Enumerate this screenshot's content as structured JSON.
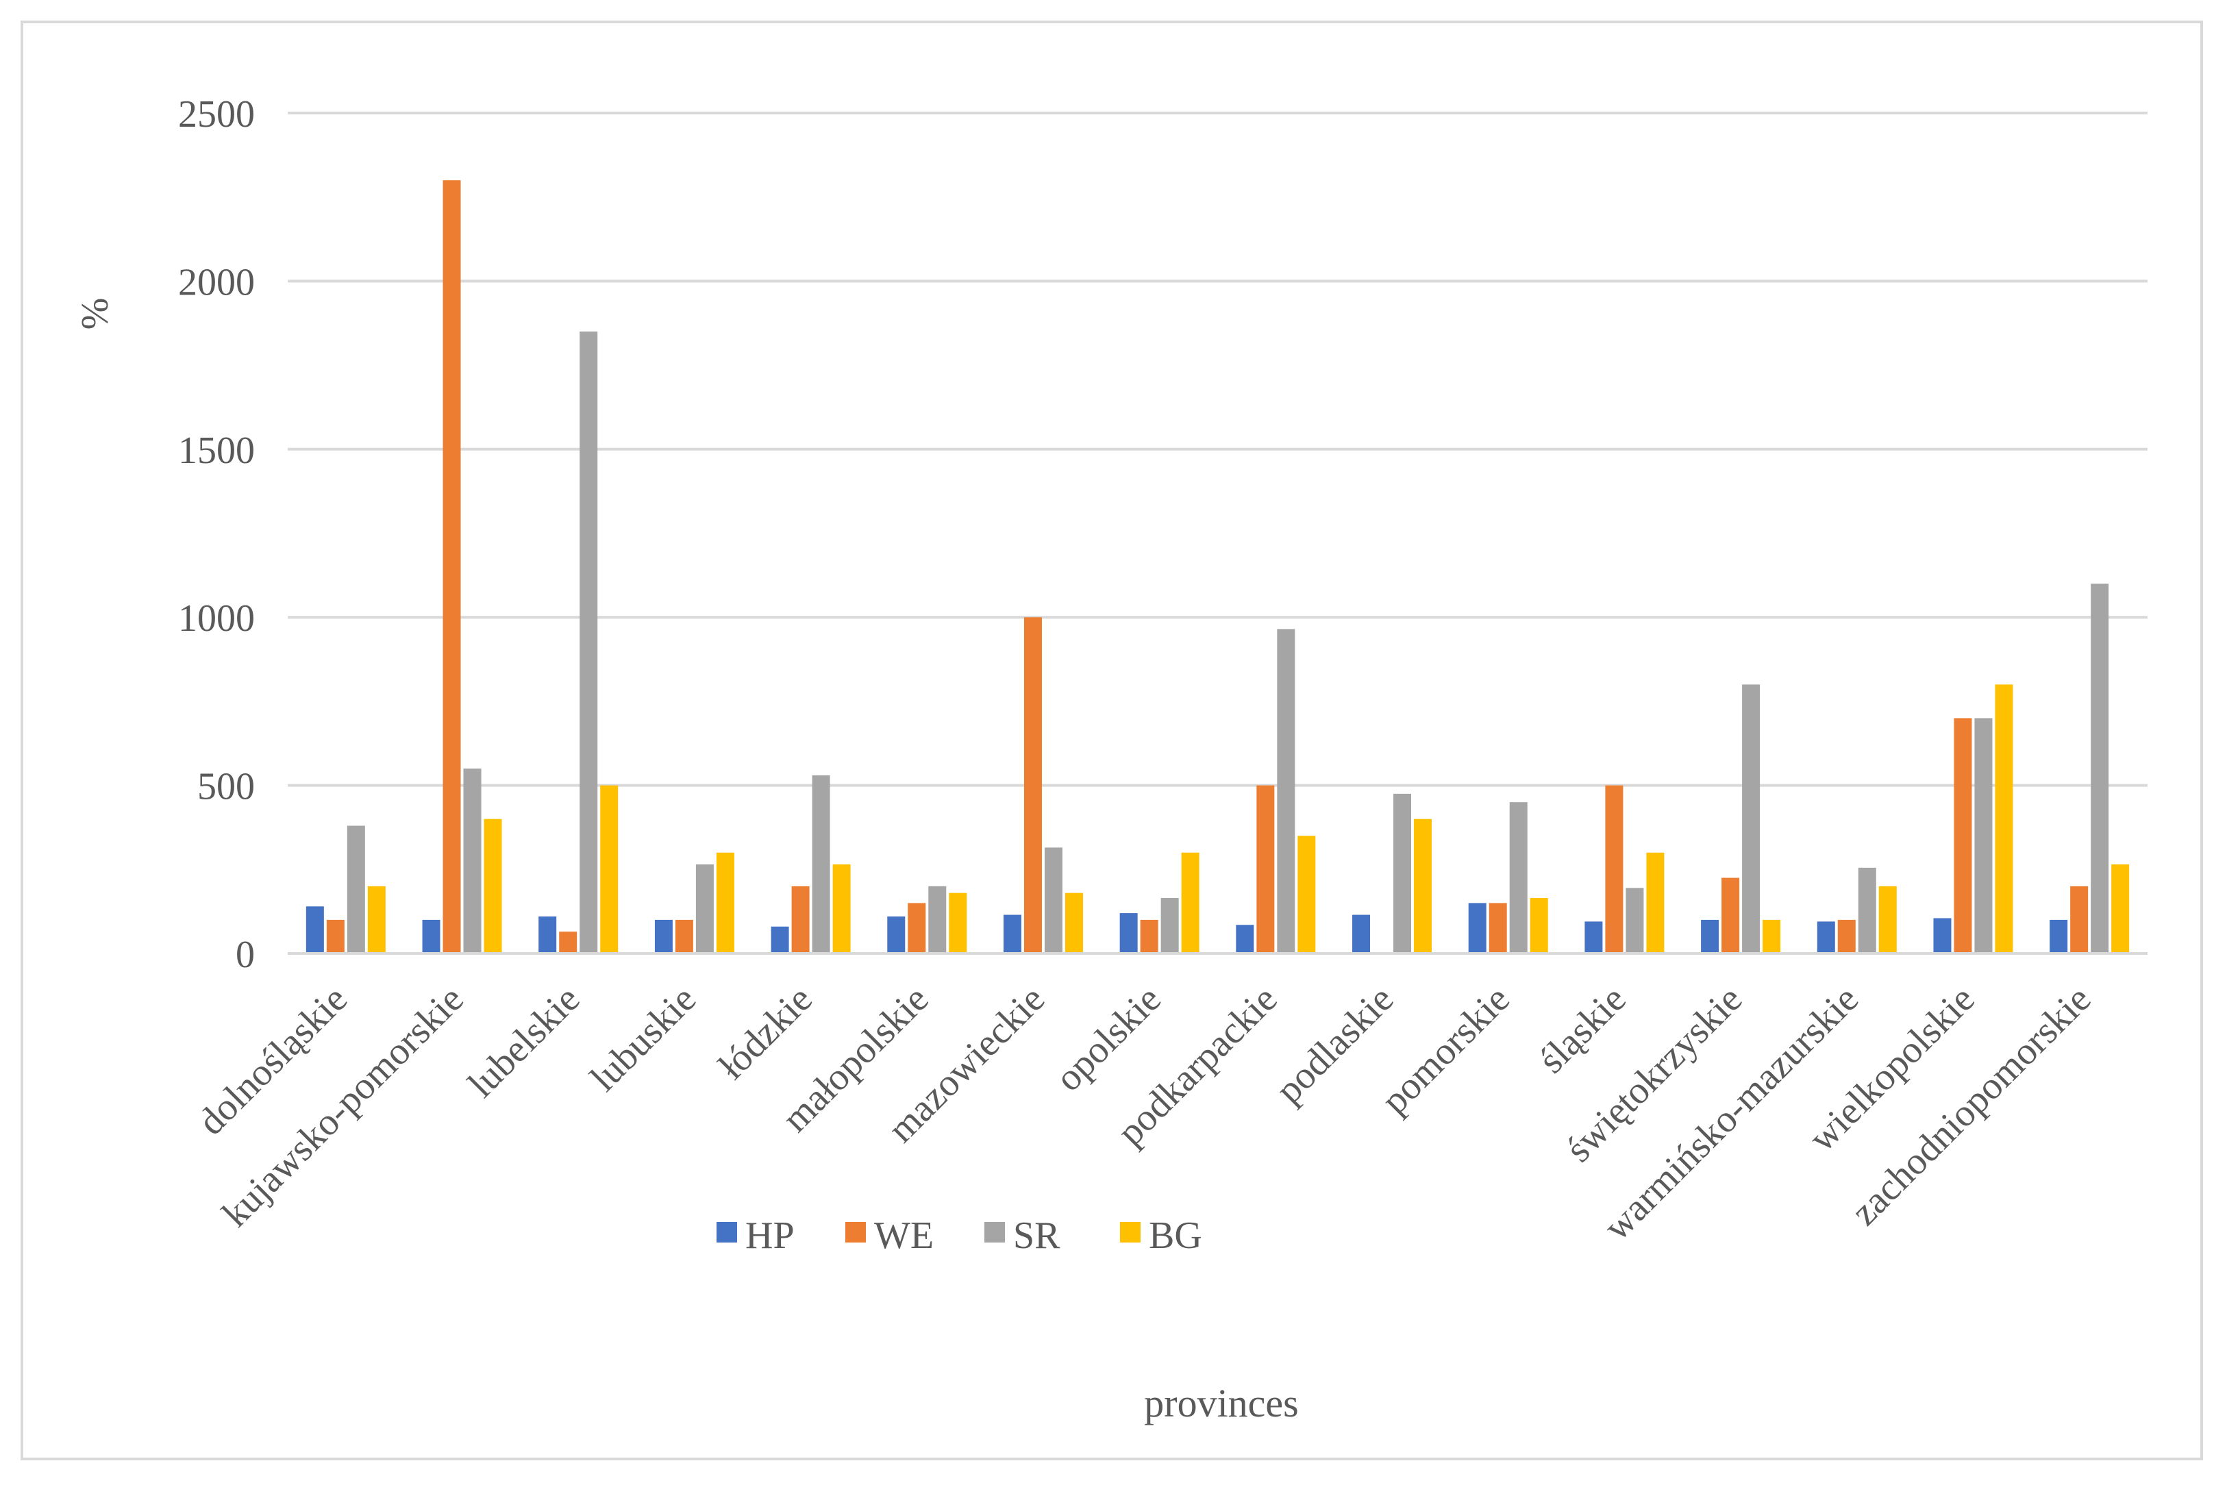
{
  "chart_data": {
    "type": "bar",
    "title": "",
    "xlabel": "provinces",
    "ylabel": "%",
    "ylim": [
      0,
      2500
    ],
    "yticks": [
      0,
      500,
      1000,
      1500,
      2000,
      2500
    ],
    "grid": true,
    "legend_position": "bottom-center",
    "categories": [
      "dolnośląskie",
      "kujawsko-pomorskie",
      "lubelskie",
      "lubuskie",
      "łódzkie",
      "małopolskie",
      "mazowieckie",
      "opolskie",
      "podkarpackie",
      "podlaskie",
      "pomorskie",
      "śląskie",
      "świętokrzyskie",
      "warmińsko-mazurskie",
      "wielkopolskie",
      "zachodniopomorskie"
    ],
    "series": [
      {
        "name": "HP",
        "color": "#4472c4",
        "values": [
          140,
          100,
          110,
          100,
          80,
          110,
          115,
          120,
          85,
          115,
          150,
          95,
          100,
          95,
          105,
          100
        ]
      },
      {
        "name": "WE",
        "color": "#ed7d31",
        "values": [
          100,
          2300,
          65,
          100,
          200,
          150,
          1000,
          100,
          500,
          0,
          150,
          500,
          225,
          100,
          700,
          200
        ]
      },
      {
        "name": "SR",
        "color": "#a5a5a5",
        "values": [
          380,
          550,
          1850,
          265,
          530,
          200,
          315,
          165,
          965,
          475,
          450,
          195,
          800,
          255,
          700,
          1100
        ]
      },
      {
        "name": "BG",
        "color": "#ffc000",
        "values": [
          200,
          400,
          500,
          300,
          265,
          180,
          180,
          300,
          350,
          400,
          165,
          300,
          100,
          200,
          800,
          265
        ]
      }
    ]
  }
}
